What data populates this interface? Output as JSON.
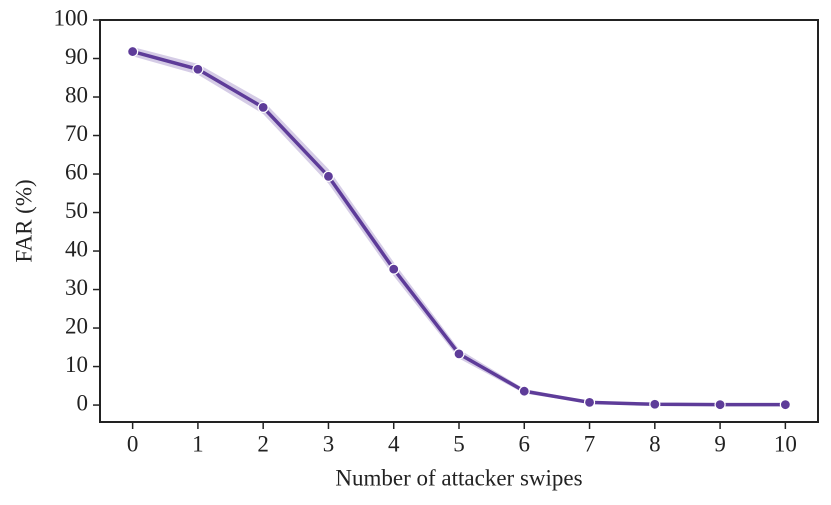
{
  "chart_data": {
    "type": "line",
    "xlabel": "Number of attacker swipes",
    "ylabel": "FAR (%)",
    "x": [
      0,
      1,
      2,
      3,
      4,
      5,
      6,
      7,
      8,
      9,
      10
    ],
    "series": [
      {
        "color": "#5e3c99",
        "band_color": "#cbbfe0",
        "values": [
          91.8,
          87.2,
          77.3,
          59.4,
          35.3,
          13.3,
          3.6,
          0.7,
          0.2,
          0.1,
          0.1
        ],
        "ci_lower": [
          90.6,
          85.8,
          75.6,
          57.5,
          33.5,
          12.1,
          3.0,
          0.4,
          0.1,
          0.0,
          0.0
        ],
        "ci_upper": [
          93.0,
          88.6,
          79.0,
          61.3,
          37.1,
          14.5,
          4.2,
          1.0,
          0.3,
          0.2,
          0.2
        ]
      }
    ],
    "xlim": [
      -0.5,
      10.5
    ],
    "ylim": [
      -4.4,
      100
    ],
    "xticks": [
      0,
      1,
      2,
      3,
      4,
      5,
      6,
      7,
      8,
      9,
      10
    ],
    "yticks": [
      0,
      10,
      20,
      30,
      40,
      50,
      60,
      70,
      80,
      90,
      100
    ],
    "grid": false
  }
}
